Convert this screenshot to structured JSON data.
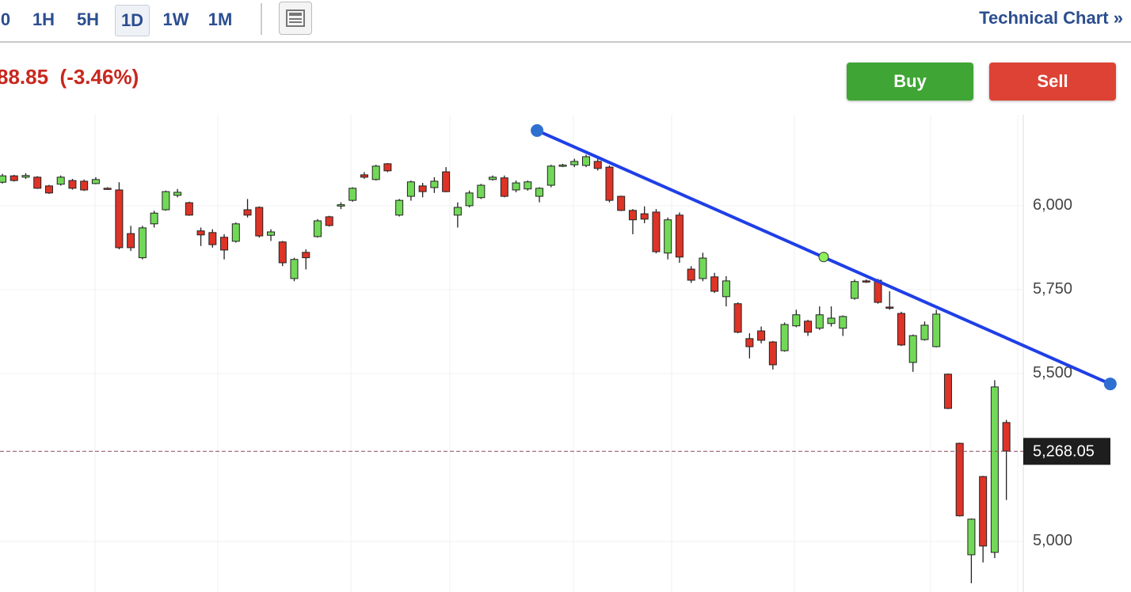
{
  "toolbar": {
    "timeframes": [
      "0",
      "1H",
      "5H",
      "1D",
      "1W",
      "1M"
    ],
    "active": "1D",
    "link": "Technical Chart",
    "link_icon": "»"
  },
  "quote": {
    "change": "88.85",
    "change_pct": "(-3.46%)"
  },
  "buttons": {
    "buy": "Buy",
    "sell": "Sell"
  },
  "chart_data": {
    "type": "candlestick",
    "categories": [
      null,
      null,
      null,
      null,
      null,
      null,
      null,
      null,
      null,
      null,
      null,
      null,
      null,
      null,
      null,
      null,
      null,
      null,
      null,
      null,
      null,
      null,
      null,
      null,
      null,
      null,
      null,
      null,
      null,
      null,
      null,
      null,
      null,
      null,
      null,
      null,
      null,
      null,
      null,
      null,
      null,
      null,
      null,
      null,
      null,
      null,
      null,
      null,
      null,
      null,
      null,
      null,
      null,
      null,
      null,
      null,
      null,
      null,
      null,
      null,
      null,
      null,
      null,
      null,
      null,
      null,
      null,
      null,
      null,
      null,
      null,
      null,
      null,
      null,
      null,
      null,
      null,
      null,
      null,
      null,
      null,
      null,
      null,
      null,
      null,
      null,
      null
    ],
    "open": [
      6070,
      6089,
      6085,
      6085,
      6059,
      6064,
      6075,
      6073,
      6066,
      6052,
      6047,
      5917,
      5845,
      5946,
      5988,
      6031,
      6009,
      5925,
      5920,
      5906,
      5894,
      5988,
      5995,
      5912,
      5892,
      5783,
      5861,
      5908,
      5967,
      5999,
      6016,
      6092,
      6078,
      6125,
      5972,
      6028,
      6059,
      6054,
      6101,
      5972,
      6000,
      6024,
      6078,
      6083,
      6047,
      6050,
      6028,
      6061,
      6120,
      6122,
      6120,
      6132,
      6115,
      6028,
      5986,
      5976,
      5981,
      5859,
      5972,
      5811,
      5783,
      5788,
      5729,
      5708,
      5604,
      5627,
      5594,
      5568,
      5642,
      5656,
      5635,
      5649,
      5635,
      5724,
      5776,
      5778,
      5698,
      5679,
      5533,
      5601,
      5580,
      5498,
      5292,
      4960,
      5193,
      4967,
      5354
    ],
    "high": [
      6095,
      6092,
      6097,
      6088,
      6062,
      6090,
      6080,
      6078,
      6085,
      6055,
      6070,
      5940,
      5940,
      5985,
      6045,
      6050,
      6012,
      5935,
      5930,
      5915,
      5950,
      6020,
      5998,
      5930,
      5895,
      5845,
      5870,
      5960,
      5970,
      6010,
      6055,
      6100,
      6122,
      6127,
      6020,
      6075,
      6068,
      6085,
      6115,
      6010,
      6045,
      6065,
      6090,
      6090,
      6075,
      6075,
      6055,
      6122,
      6125,
      6140,
      6152,
      6140,
      6120,
      6030,
      5990,
      5998,
      5990,
      5965,
      5980,
      5820,
      5860,
      5800,
      5790,
      5712,
      5620,
      5640,
      5597,
      5652,
      5690,
      5660,
      5700,
      5700,
      5673,
      5780,
      5780,
      5782,
      5745,
      5684,
      5616,
      5655,
      5690,
      5500,
      5294,
      5068,
      5195,
      5480,
      5362
    ],
    "low": [
      6066,
      6072,
      6080,
      6050,
      6035,
      6060,
      6048,
      6044,
      6064,
      6048,
      5870,
      5865,
      5840,
      5935,
      5985,
      6025,
      5970,
      5880,
      5875,
      5840,
      5890,
      5965,
      5905,
      5895,
      5820,
      5775,
      5810,
      5905,
      5938,
      5990,
      6012,
      6080,
      6075,
      6100,
      5968,
      6015,
      6025,
      6038,
      6040,
      5935,
      5995,
      6020,
      6075,
      6025,
      6040,
      6045,
      6010,
      6055,
      6115,
      6115,
      6115,
      6105,
      6010,
      5984,
      5915,
      5948,
      5858,
      5840,
      5830,
      5770,
      5775,
      5740,
      5700,
      5620,
      5545,
      5590,
      5512,
      5565,
      5638,
      5612,
      5630,
      5640,
      5612,
      5720,
      5770,
      5708,
      5690,
      5582,
      5505,
      5598,
      5578,
      5394,
      5074,
      4875,
      4937,
      4950,
      5123
    ],
    "close": [
      6089,
      6075,
      6090,
      6052,
      6038,
      6085,
      6052,
      6047,
      6078,
      6050,
      5875,
      5875,
      5934,
      5978,
      6042,
      6040,
      5972,
      5913,
      5884,
      5868,
      5946,
      5972,
      5910,
      5922,
      5830,
      5840,
      5845,
      5955,
      5941,
      6003,
      6052,
      6085,
      6118,
      6104,
      6016,
      6071,
      6042,
      6073,
      6042,
      5995,
      6038,
      6061,
      6085,
      6028,
      6068,
      6071,
      6052,
      6118,
      6121,
      6132,
      6146,
      6111,
      6016,
      5986,
      5958,
      5960,
      5863,
      5958,
      5847,
      5778,
      5844,
      5745,
      5776,
      5623,
      5580,
      5599,
      5526,
      5646,
      5675,
      5623,
      5675,
      5665,
      5670,
      5774,
      5774,
      5712,
      5696,
      5585,
      5613,
      5644,
      5677,
      5396,
      5076,
      5066,
      4986,
      5460,
      5269
    ],
    "up_color": "#72d958",
    "down_color": "#de3327",
    "ylim": [
      4849,
      6271
    ],
    "yticks": [
      {
        "value": 5000,
        "label": "5,000"
      },
      {
        "value": 5500,
        "label": "5,500"
      },
      {
        "value": 5750,
        "label": "5,750"
      },
      {
        "value": 6000,
        "label": "6,000"
      }
    ],
    "grid": true,
    "last_price": {
      "value": 5268.05,
      "label": "5,268.05"
    },
    "trendline": {
      "x": [
        45.8,
        94.9
      ],
      "y": [
        6224,
        5469
      ],
      "color": "#1f3fe6"
    },
    "handle": {
      "x": 70.35,
      "y": 5847
    }
  }
}
